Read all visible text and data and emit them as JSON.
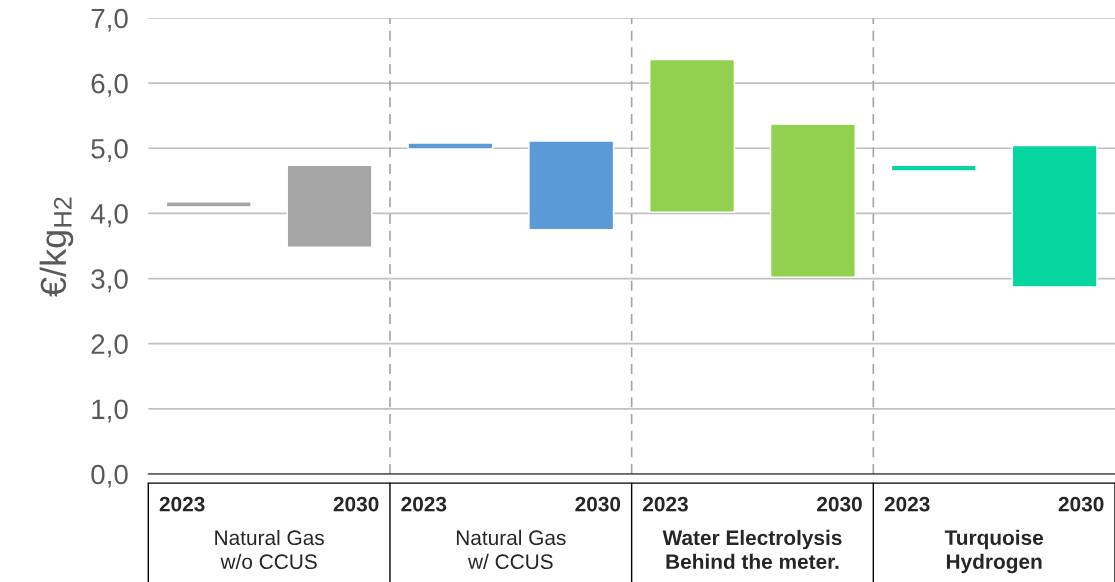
{
  "chart_data": {
    "type": "bar",
    "categories": [
      "2023",
      "2030",
      "2023",
      "2030",
      "2023",
      "2030",
      "2023",
      "2030"
    ],
    "base": [
      4.1,
      3.48,
      4.99,
      3.75,
      4.02,
      3.02,
      4.65,
      2.87
    ],
    "values": [
      0.08,
      1.26,
      0.09,
      1.36,
      2.34,
      2.35,
      0.09,
      2.17
    ],
    "colors": [
      "#a5a5a5",
      "#a5a5a5",
      "#5b9bd5",
      "#5b9bd5",
      "#92d050",
      "#92d050",
      "#07d5a0",
      "#07d5a0"
    ],
    "ylabel": "€/kg$_{H2}$",
    "ylim": [
      0,
      7
    ],
    "yticks": [
      {
        "value": 0,
        "label": "0,0"
      },
      {
        "value": 1,
        "label": "1,0"
      },
      {
        "value": 2,
        "label": "2,0"
      },
      {
        "value": 3,
        "label": "3,0"
      },
      {
        "value": 4,
        "label": "4,0"
      },
      {
        "value": 5,
        "label": "5,0"
      },
      {
        "value": 6,
        "label": "6,0"
      },
      {
        "value": 7,
        "label": "7,0"
      }
    ],
    "grid": "y",
    "annotations": [
      "Natural Gas\nw/o CCUS",
      "Natural Gas\nw/ CCUS",
      "Water Electrolysis\nBehind the meter.",
      "Turquoise\nHydrogen"
    ]
  }
}
